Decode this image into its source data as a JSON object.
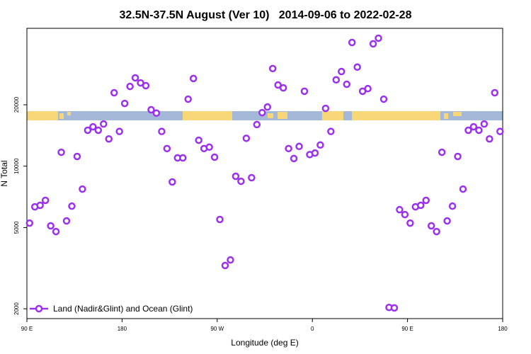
{
  "chart_data": {
    "type": "scatter",
    "title": "32.5N-37.5N August (Ver 10)   2014-09-06 to 2022-02-28",
    "x_label": "Longitude (deg E)",
    "y_label": "N Total",
    "xlim": [
      90,
      540
    ],
    "xticks": [
      {
        "value": 90,
        "label": "90 E"
      },
      180,
      {
        "value": 270,
        "label": "90 W"
      },
      {
        "value": 360,
        "label": "0"
      },
      {
        "value": 450,
        "label": "90 E"
      },
      {
        "value": 540,
        "label": "180"
      }
    ],
    "ylim": [
      1790,
      47400
    ],
    "ylog": true,
    "yticks": [
      2000,
      5000,
      10000,
      20000
    ],
    "legend": "bottomleft",
    "x": [
      92.5,
      97.5,
      102.5,
      107.5,
      112.5,
      117.5,
      122.5,
      127.5,
      132.5,
      137.5,
      142.5,
      147.5,
      152.5,
      157.5,
      162.5,
      167.5,
      172.5,
      177.5,
      182.5,
      187.5,
      192.5,
      197.5,
      202.5,
      207.5,
      212.5,
      217.5,
      222.5,
      227.5,
      232.5,
      237.5,
      242.5,
      247.5,
      252.5,
      257.5,
      262.5,
      267.5,
      272.5,
      277.5,
      282.5,
      287.5,
      292.5,
      297.5,
      302.5,
      307.5,
      312.5,
      317.5,
      322.5,
      327.5,
      332.5,
      337.5,
      342.5,
      347.5,
      352.5,
      357.5,
      362.5,
      367.5,
      372.5,
      377.5,
      382.5,
      387.5,
      392.5,
      397.5,
      402.5,
      407.5,
      412.5,
      417.5,
      422.5,
      427.5,
      432.5,
      437.5,
      442.5,
      447.5,
      452.5,
      457.5,
      462.5,
      467.5,
      472.5,
      477.5,
      482.5,
      487.5,
      492.5,
      497.5,
      502.5,
      507.5,
      512.5,
      517.5,
      522.5,
      527.5,
      532.5,
      537.5
    ],
    "series": [
      {
        "name": "Land (Nadir&Glint) and Ocean (Glint)",
        "color": "#9b30f0",
        "values": [
          5260,
          6320,
          6430,
          6800,
          5100,
          4780,
          11700,
          5390,
          6370,
          11160,
          7720,
          15000,
          15600,
          15000,
          16100,
          13600,
          22900,
          14800,
          20300,
          24600,
          27100,
          25600,
          24800,
          18900,
          18200,
          14800,
          12200,
          8370,
          10980,
          10980,
          21300,
          26900,
          13400,
          12200,
          12400,
          11070,
          5480,
          3260,
          3470,
          8920,
          8430,
          13700,
          8780,
          16000,
          18300,
          19500,
          30100,
          25000,
          24200,
          12200,
          10900,
          12500,
          23300,
          11400,
          11600,
          12700,
          19200,
          14800,
          26500,
          29100,
          25200,
          40400,
          30600,
          23300,
          24000,
          39800,
          42400,
          21300,
          2030,
          2020,
          6120,
          5790,
          5260,
          6320,
          6430,
          6800,
          5100,
          4780,
          11700,
          5390,
          6370,
          11160,
          7720,
          15000,
          15600,
          15000,
          16100,
          13600,
          22900,
          14800
        ]
      }
    ]
  }
}
